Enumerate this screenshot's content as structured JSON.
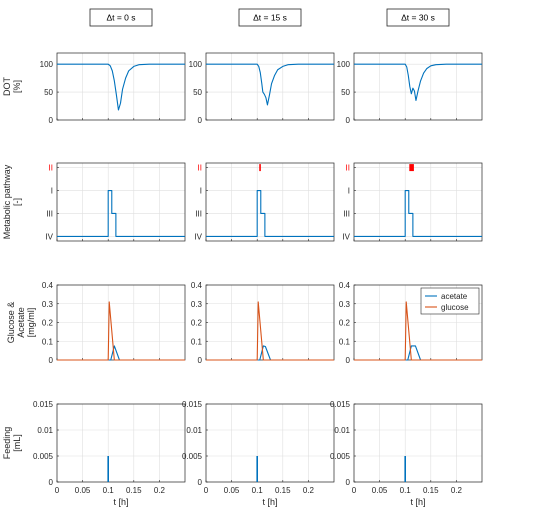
{
  "column_titles": [
    "Δt = 0 s",
    "Δt = 15 s",
    "Δt = 30 s"
  ],
  "row_labels": [
    [
      "DOT",
      "[%]"
    ],
    [
      "Metabolic pathway",
      "[-]"
    ],
    [
      "Glucose &",
      "Acetate",
      "[mg/ml]"
    ],
    [
      "Feeding",
      "[mL]"
    ]
  ],
  "x_label": "t [h]",
  "colors": {
    "blue": "#0072BD",
    "orange": "#D95319",
    "red": "#FF0000",
    "grid": "#DFDFDF",
    "axis": "#262626"
  },
  "chart_data": [
    {
      "row": "DOT",
      "type": "line",
      "xlim": [
        0,
        0.25
      ],
      "ylim": [
        0,
        120
      ],
      "y_ticks": [
        0,
        50,
        100
      ],
      "x_ticks": [
        0,
        0.05,
        0.1,
        0.15,
        0.2
      ],
      "grid": true,
      "panels": [
        {
          "title": "Δt = 0 s",
          "series": [
            {
              "x": [
                0,
                0.1,
                0.104,
                0.108,
                0.112,
                0.116,
                0.12,
                0.124,
                0.128,
                0.134,
                0.14,
                0.15,
                0.16,
                0.18,
                0.2,
                0.25
              ],
              "y": [
                100,
                100,
                97,
                88,
                70,
                45,
                18,
                30,
                55,
                75,
                88,
                96,
                99,
                100,
                100,
                100
              ]
            }
          ]
        },
        {
          "title": "Δt = 15 s",
          "series": [
            {
              "x": [
                0,
                0.1,
                0.103,
                0.106,
                0.109,
                0.111,
                0.114,
                0.117,
                0.12,
                0.124,
                0.128,
                0.134,
                0.14,
                0.15,
                0.16,
                0.18,
                0.25
              ],
              "y": [
                100,
                100,
                96,
                85,
                65,
                50,
                46,
                40,
                27,
                45,
                65,
                80,
                90,
                96,
                99,
                100,
                100
              ]
            }
          ]
        },
        {
          "title": "Δt = 30 s",
          "series": [
            {
              "x": [
                0,
                0.1,
                0.103,
                0.106,
                0.109,
                0.112,
                0.115,
                0.118,
                0.121,
                0.125,
                0.13,
                0.136,
                0.142,
                0.15,
                0.16,
                0.18,
                0.25
              ],
              "y": [
                100,
                100,
                95,
                80,
                60,
                47,
                57,
                52,
                35,
                52,
                70,
                84,
                92,
                97,
                99,
                100,
                100
              ]
            }
          ]
        }
      ]
    },
    {
      "row": "Metabolic pathway",
      "type": "line",
      "xlim": [
        0,
        0.25
      ],
      "ylim": [
        0.8,
        4.2
      ],
      "y_reversed": true,
      "y_tick_values": [
        1,
        2,
        3,
        4
      ],
      "y_tick_labels": [
        "II",
        "I",
        "III",
        "IV"
      ],
      "y_tick_label_colors": [
        "#FF0000",
        "#262626",
        "#262626",
        "#262626"
      ],
      "x_ticks": [
        0,
        0.05,
        0.1,
        0.15,
        0.2
      ],
      "grid": true,
      "panels": [
        {
          "title": "Δt = 0 s",
          "series": [
            {
              "x": [
                0,
                0.1,
                0.1,
                0.107,
                0.107,
                0.115,
                0.115,
                0.25
              ],
              "y": [
                4,
                4,
                2,
                2,
                3,
                3,
                4,
                4
              ]
            }
          ],
          "marker_ii": null
        },
        {
          "title": "Δt = 15 s",
          "series": [
            {
              "x": [
                0,
                0.1,
                0.1,
                0.107,
                0.107,
                0.115,
                0.115,
                0.25
              ],
              "y": [
                4,
                4,
                2,
                2,
                3,
                3,
                4,
                4
              ]
            }
          ],
          "marker_ii": [
            0.104,
            0.106
          ]
        },
        {
          "title": "Δt = 30 s",
          "series": [
            {
              "x": [
                0,
                0.1,
                0.1,
                0.107,
                0.107,
                0.115,
                0.115,
                0.25
              ],
              "y": [
                4,
                4,
                2,
                2,
                3,
                3,
                4,
                4
              ]
            }
          ],
          "marker_ii": [
            0.108,
            0.117
          ]
        }
      ]
    },
    {
      "row": "Glucose & Acetate",
      "type": "line",
      "xlim": [
        0,
        0.25
      ],
      "ylim": [
        0,
        0.4
      ],
      "y_ticks": [
        0,
        0.1,
        0.2,
        0.3,
        0.4
      ],
      "x_ticks": [
        0,
        0.05,
        0.1,
        0.15,
        0.2
      ],
      "grid": true,
      "legend": {
        "entries": [
          "acetate",
          "glucose"
        ],
        "placement": "top-right",
        "panel": 2
      },
      "panels": [
        {
          "title": "Δt = 0 s",
          "series": [
            {
              "name": "acetate",
              "x": [
                0,
                0.105,
                0.112,
                0.122,
                0.25
              ],
              "y": [
                0,
                0,
                0.075,
                0,
                0
              ]
            },
            {
              "name": "glucose",
              "x": [
                0,
                0.1,
                0.102,
                0.112,
                0.25
              ],
              "y": [
                0,
                0,
                0.31,
                0,
                0
              ]
            }
          ]
        },
        {
          "title": "Δt = 15 s",
          "series": [
            {
              "name": "acetate",
              "x": [
                0,
                0.105,
                0.112,
                0.116,
                0.126,
                0.25
              ],
              "y": [
                0,
                0,
                0.075,
                0.072,
                0,
                0
              ]
            },
            {
              "name": "glucose",
              "x": [
                0,
                0.1,
                0.102,
                0.112,
                0.25
              ],
              "y": [
                0,
                0,
                0.31,
                0,
                0
              ]
            }
          ]
        },
        {
          "title": "Δt = 30 s",
          "series": [
            {
              "name": "acetate",
              "x": [
                0,
                0.105,
                0.112,
                0.12,
                0.13,
                0.25
              ],
              "y": [
                0,
                0,
                0.075,
                0.075,
                0,
                0
              ]
            },
            {
              "name": "glucose",
              "x": [
                0,
                0.1,
                0.102,
                0.112,
                0.25
              ],
              "y": [
                0,
                0,
                0.31,
                0,
                0
              ]
            }
          ]
        }
      ]
    },
    {
      "row": "Feeding",
      "type": "bar",
      "xlim": [
        0,
        0.25
      ],
      "ylim": [
        0,
        0.015
      ],
      "y_ticks": [
        0,
        0.005,
        0.01,
        0.015
      ],
      "x_ticks": [
        0,
        0.05,
        0.1,
        0.15,
        0.2
      ],
      "grid": true,
      "panels": [
        {
          "title": "Δt = 0 s",
          "x": [
            0.1
          ],
          "values": [
            0.005
          ]
        },
        {
          "title": "Δt = 15 s",
          "x": [
            0.1
          ],
          "values": [
            0.005
          ]
        },
        {
          "title": "Δt = 30 s",
          "x": [
            0.1
          ],
          "values": [
            0.005
          ]
        }
      ]
    }
  ]
}
